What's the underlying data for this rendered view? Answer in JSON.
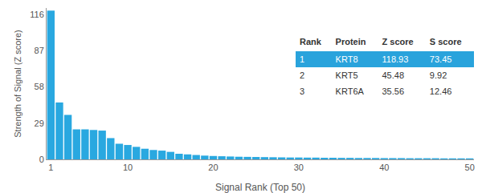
{
  "chart_data": {
    "type": "bar",
    "x_label": "Signal Rank (Top 50)",
    "y_label": "Strength of Signal (Z score)",
    "x": [
      1,
      2,
      3,
      4,
      5,
      6,
      7,
      8,
      9,
      10,
      11,
      12,
      13,
      14,
      15,
      16,
      17,
      18,
      19,
      20,
      21,
      22,
      23,
      24,
      25,
      26,
      27,
      28,
      29,
      30,
      31,
      32,
      33,
      34,
      35,
      36,
      37,
      38,
      39,
      40,
      41,
      42,
      43,
      44,
      45,
      46,
      47,
      48,
      49,
      50
    ],
    "values": [
      118.93,
      45.48,
      35.56,
      24,
      24,
      23.5,
      23,
      17,
      12.5,
      11.5,
      10,
      8.5,
      7.5,
      7,
      6,
      4.5,
      4,
      3.5,
      3,
      2.7,
      2.5,
      2.3,
      2.1,
      2,
      1.9,
      1.8,
      1.7,
      1.6,
      1.5,
      1.5,
      1.4,
      1.4,
      1.3,
      1.3,
      1.2,
      1.2,
      1.1,
      1.1,
      1.1,
      1,
      1,
      1,
      0.9,
      0.9,
      0.9,
      0.9,
      0.8,
      0.8,
      0.8,
      0.8
    ],
    "color": "#29a8e0",
    "xlim": [
      0.5,
      50.5
    ],
    "xticks": [
      1,
      10,
      20,
      30,
      40,
      50
    ],
    "ylim": [
      0,
      121
    ],
    "yticks": [
      0,
      29,
      58,
      87,
      116
    ],
    "grid": false
  },
  "table": {
    "header": [
      "Rank",
      "Protein",
      "Z score",
      "S score"
    ],
    "rows": [
      [
        "1",
        "KRT8",
        "118.93",
        "73.45"
      ],
      [
        "2",
        "KRT5",
        "45.48",
        "9.92"
      ],
      [
        "3",
        "KRT6A",
        "35.56",
        "12.46"
      ]
    ]
  }
}
